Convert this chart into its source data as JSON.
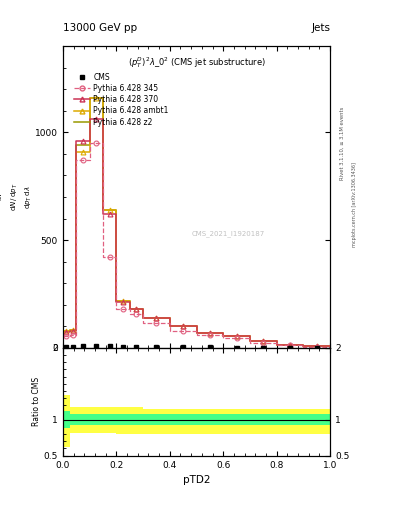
{
  "title_left": "13000 GeV pp",
  "title_right": "Jets",
  "annotation": "$(p_T^D)^2\\lambda\\_0^2$ (CMS jet substructure)",
  "watermark": "CMS_2021_I1920187",
  "rivet_text": "Rivet 3.1.10, ≥ 3.1M events",
  "mcplots_text": "mcplots.cern.ch [arXiv:1306.3436]",
  "xlabel": "pTD2",
  "xlim": [
    0.0,
    1.0
  ],
  "ylim_main": [
    0,
    1400
  ],
  "ylim_ratio": [
    0.5,
    2.0
  ],
  "x_bins": [
    0.0,
    0.025,
    0.05,
    0.1,
    0.15,
    0.2,
    0.25,
    0.3,
    0.4,
    0.5,
    0.6,
    0.7,
    0.8,
    0.9,
    1.0
  ],
  "cms_vals": [
    3,
    4,
    8,
    10,
    10,
    4,
    3,
    2,
    2,
    2,
    1,
    1,
    1,
    1
  ],
  "p345_vals": [
    55,
    60,
    870,
    950,
    420,
    180,
    155,
    115,
    80,
    60,
    45,
    25,
    12,
    6
  ],
  "p370_vals": [
    75,
    80,
    960,
    1060,
    620,
    215,
    180,
    140,
    100,
    70,
    55,
    30,
    15,
    8
  ],
  "pambt1_vals": [
    80,
    82,
    910,
    1160,
    640,
    218,
    180,
    140,
    100,
    70,
    55,
    30,
    15,
    8
  ],
  "pz2_vals": [
    80,
    82,
    940,
    1160,
    640,
    218,
    180,
    140,
    100,
    70,
    55,
    30,
    15,
    8
  ],
  "ratio_y_bins": [
    0.0,
    0.025,
    0.05,
    0.1,
    0.15,
    0.2,
    0.3,
    1.0
  ],
  "ratio_yellow_lo": [
    0.62,
    0.82,
    0.82,
    0.82,
    0.82,
    0.8,
    0.8
  ],
  "ratio_yellow_hi": [
    1.35,
    1.18,
    1.18,
    1.18,
    1.18,
    1.18,
    1.15
  ],
  "ratio_green_lo": [
    0.88,
    0.93,
    0.93,
    0.93,
    0.93,
    0.93,
    0.93
  ],
  "ratio_green_hi": [
    1.12,
    1.08,
    1.08,
    1.08,
    1.08,
    1.08,
    1.08
  ],
  "color_345": "#e06080",
  "color_370": "#cc3355",
  "color_ambt1": "#ddaa00",
  "color_z2": "#999900",
  "color_cms": "#000000",
  "color_band_yellow": "#ffff44",
  "color_band_green": "#44ff88",
  "yticks_main": [
    0,
    500,
    1000
  ],
  "ytick_labels_main": [
    "0",
    "500",
    "1000"
  ],
  "yticks_ratio": [
    0.5,
    1.0,
    2.0
  ],
  "figsize": [
    3.93,
    5.12
  ],
  "dpi": 100
}
